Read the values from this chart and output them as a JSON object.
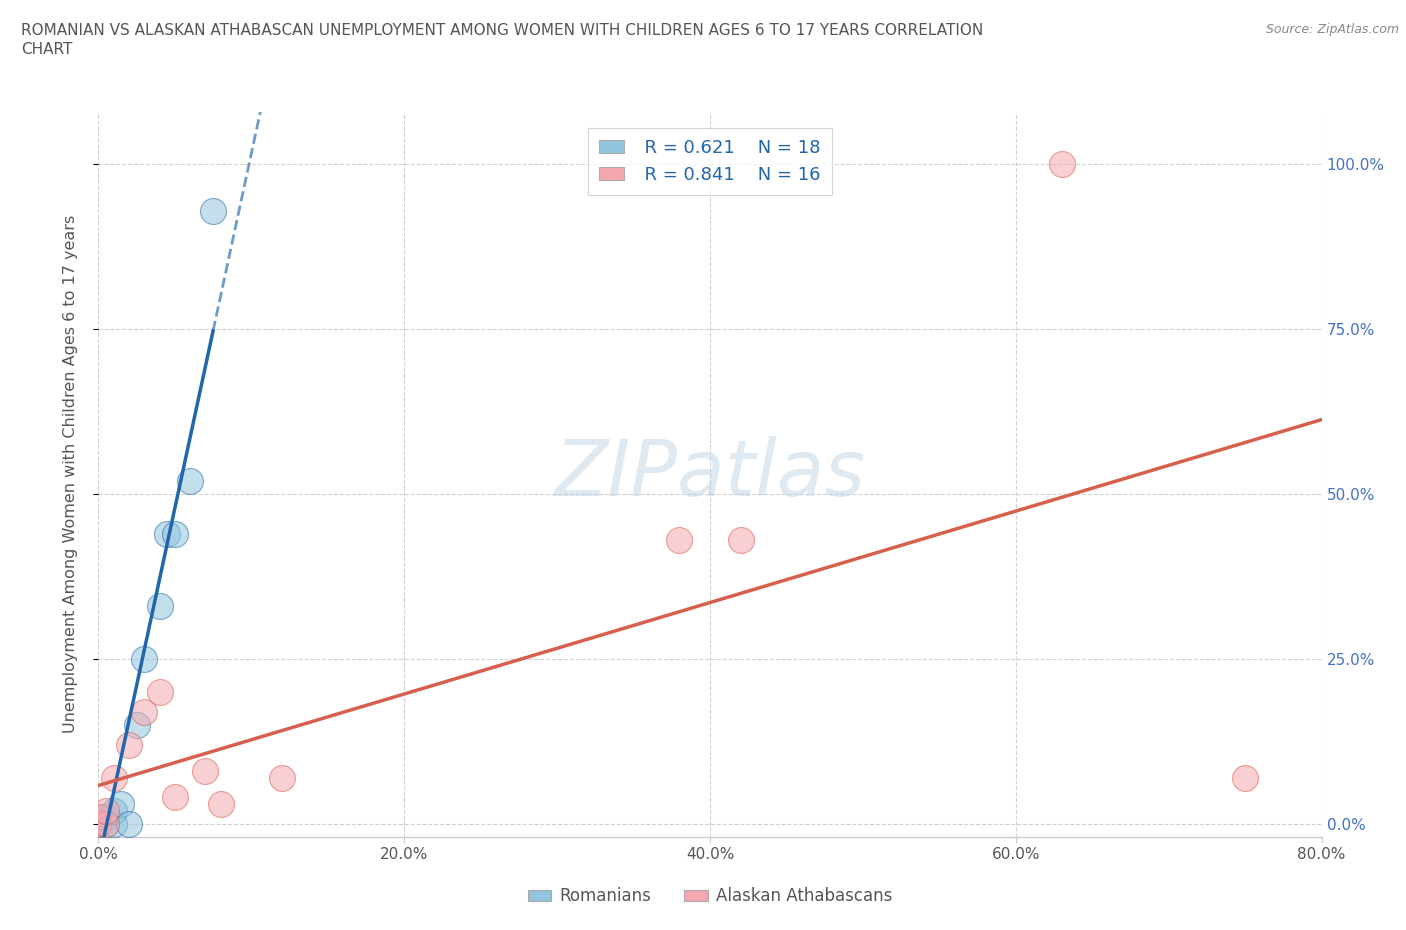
{
  "title_line1": "ROMANIAN VS ALASKAN ATHABASCAN UNEMPLOYMENT AMONG WOMEN WITH CHILDREN AGES 6 TO 17 YEARS CORRELATION",
  "title_line2": "CHART",
  "source": "Source: ZipAtlas.com",
  "ylabel": "Unemployment Among Women with Children Ages 6 to 17 years",
  "watermark": "ZIPatlas",
  "legend_r1": "R = 0.621",
  "legend_n1": "N = 18",
  "legend_r2": "R = 0.841",
  "legend_n2": "N = 16",
  "xlim": [
    0,
    0.8
  ],
  "ylim": [
    -0.02,
    1.08
  ],
  "yticks": [
    0.0,
    0.25,
    0.5,
    0.75,
    1.0
  ],
  "ytick_labels_right": [
    "0.0%",
    "25.0%",
    "50.0%",
    "75.0%",
    "100.0%"
  ],
  "xticks": [
    0.0,
    0.2,
    0.4,
    0.6,
    0.8
  ],
  "xtick_labels": [
    "0.0%",
    "20.0%",
    "40.0%",
    "60.0%",
    "80.0%"
  ],
  "blue_color": "#92c5de",
  "pink_color": "#f4a9b0",
  "blue_line_color": "#2166ac",
  "pink_line_color": "#d6604d",
  "romanian_x": [
    0.0,
    0.0,
    0.0,
    0.0,
    0.0,
    0.005,
    0.005,
    0.01,
    0.01,
    0.015,
    0.02,
    0.025,
    0.03,
    0.04,
    0.045,
    0.05,
    0.06,
    0.075
  ],
  "romanian_y": [
    0.0,
    0.0,
    0.0,
    0.005,
    0.01,
    0.0,
    0.01,
    0.0,
    0.02,
    0.03,
    0.0,
    0.15,
    0.25,
    0.33,
    0.44,
    0.44,
    0.52,
    0.93
  ],
  "alaskan_x": [
    0.0,
    0.0,
    0.005,
    0.005,
    0.01,
    0.02,
    0.03,
    0.04,
    0.05,
    0.07,
    0.08,
    0.12,
    0.38,
    0.42,
    0.63,
    0.75
  ],
  "alaskan_y": [
    0.0,
    0.01,
    0.0,
    0.02,
    0.07,
    0.12,
    0.17,
    0.2,
    0.04,
    0.08,
    0.03,
    0.07,
    0.43,
    0.43,
    1.0,
    0.07
  ],
  "grid_color": "#cccccc",
  "background_color": "#ffffff",
  "title_color": "#555555",
  "axis_color": "#555555",
  "right_axis_color": "#4472c4",
  "legend_text_color": "#2166ac"
}
